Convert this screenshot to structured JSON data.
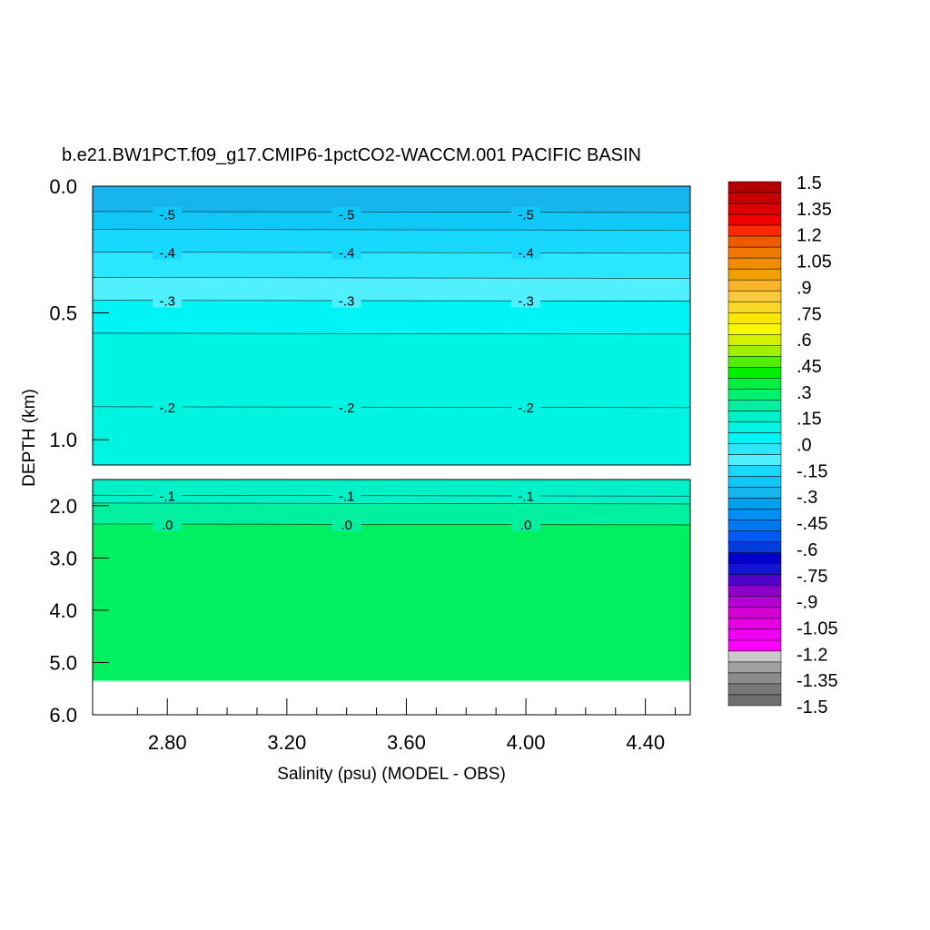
{
  "chart_data": {
    "type": "heatmap",
    "title": "b.e21.BW1PCT.f09_g17.CMIP6-1pctCO2-WACCM.001 PACIFIC BASIN",
    "xlabel": "Salinity (psu) (MODEL - OBS)",
    "ylabel": "DEPTH (km)",
    "x_ticks": [
      "2.80",
      "3.20",
      "3.60",
      "4.00",
      "4.40"
    ],
    "x_tick_values": [
      2.8,
      3.2,
      3.6,
      4.0,
      4.4
    ],
    "xlim": [
      2.55,
      4.55
    ],
    "upper_panel": {
      "ylim": [
        0.0,
        1.1
      ],
      "y_ticks": [
        "0.0",
        "0.5",
        "1.0"
      ],
      "y_tick_values": [
        0.0,
        0.5,
        1.0
      ],
      "bands": [
        {
          "from": 0.0,
          "to": 0.1,
          "color": "#18b4ee"
        },
        {
          "from": 0.1,
          "to": 0.17,
          "color": "#10c8f8"
        },
        {
          "from": 0.17,
          "to": 0.26,
          "color": "#18d8ff"
        },
        {
          "from": 0.26,
          "to": 0.36,
          "color": "#2ae6ff"
        },
        {
          "from": 0.36,
          "to": 0.45,
          "color": "#50f0ff"
        },
        {
          "from": 0.45,
          "to": 0.58,
          "color": "#00f4f6"
        },
        {
          "from": 0.58,
          "to": 1.1,
          "color": "#00f4e2"
        }
      ],
      "contour_depths": [
        0.1,
        0.17,
        0.26,
        0.36,
        0.45,
        0.58,
        0.87
      ],
      "contour_labels": [
        {
          "text": "-.5",
          "x": [
            2.8,
            3.4,
            4.0
          ],
          "depth": 0.11
        },
        {
          "text": "-.4",
          "x": [
            2.8,
            3.4,
            4.0
          ],
          "depth": 0.26
        },
        {
          "text": "-.3",
          "x": [
            2.8,
            3.4,
            4.0
          ],
          "depth": 0.45
        },
        {
          "text": "-.2",
          "x": [
            2.8,
            3.4,
            4.0
          ],
          "depth": 0.87
        }
      ]
    },
    "lower_panel": {
      "ylim": [
        1.5,
        6.0
      ],
      "y_ticks": [
        "2.0",
        "3.0",
        "4.0",
        "5.0",
        "6.0"
      ],
      "y_tick_values": [
        2.0,
        3.0,
        4.0,
        5.0,
        6.0
      ],
      "bands": [
        {
          "from": 1.5,
          "to": 1.95,
          "color": "#00f0c8"
        },
        {
          "from": 1.95,
          "to": 2.35,
          "color": "#00f0a0"
        },
        {
          "from": 2.35,
          "to": 5.35,
          "color": "#00f060"
        }
      ],
      "contour_depths": [
        1.8,
        1.95,
        2.35
      ],
      "contour_labels": [
        {
          "text": "-.1",
          "x": [
            2.8,
            3.4,
            4.0
          ],
          "depth": 1.8
        },
        {
          "text": ".0",
          "x": [
            2.8,
            3.4,
            4.0
          ],
          "depth": 2.35
        }
      ],
      "no_data_below": 5.35
    },
    "colorbar": {
      "labels": [
        "1.5",
        "1.35",
        "1.2",
        "1.05",
        ".9",
        ".75",
        ".6",
        ".45",
        ".3",
        ".15",
        ".0",
        "-.15",
        "-.3",
        "-.45",
        "-.6",
        "-.75",
        "-.9",
        "-1.05",
        "-1.2",
        "-1.35",
        "-1.5"
      ],
      "colors": [
        "#b40000",
        "#c80000",
        "#dc0000",
        "#f00000",
        "#ff2800",
        "#f05a00",
        "#f07800",
        "#f08c00",
        "#f0a000",
        "#fab428",
        "#fac83c",
        "#fad828",
        "#fae600",
        "#f8f800",
        "#d2f000",
        "#a0f000",
        "#50f000",
        "#00f000",
        "#00f040",
        "#00f070",
        "#00f0a0",
        "#00f0c8",
        "#00f4e2",
        "#00f4f6",
        "#2ae6ff",
        "#50f0ff",
        "#18d8ff",
        "#10c8f8",
        "#18b4ee",
        "#00a0f0",
        "#0090f0",
        "#0078f0",
        "#005af0",
        "#003cdc",
        "#0000c8",
        "#1414d2",
        "#5000c8",
        "#8c00c8",
        "#b400d2",
        "#d200d2",
        "#e600e6",
        "#f000f0",
        "#ff00ff",
        "#c8c8c8",
        "#a0a0a0",
        "#8c8c8c",
        "#787878",
        "#6e6e6e"
      ]
    }
  }
}
